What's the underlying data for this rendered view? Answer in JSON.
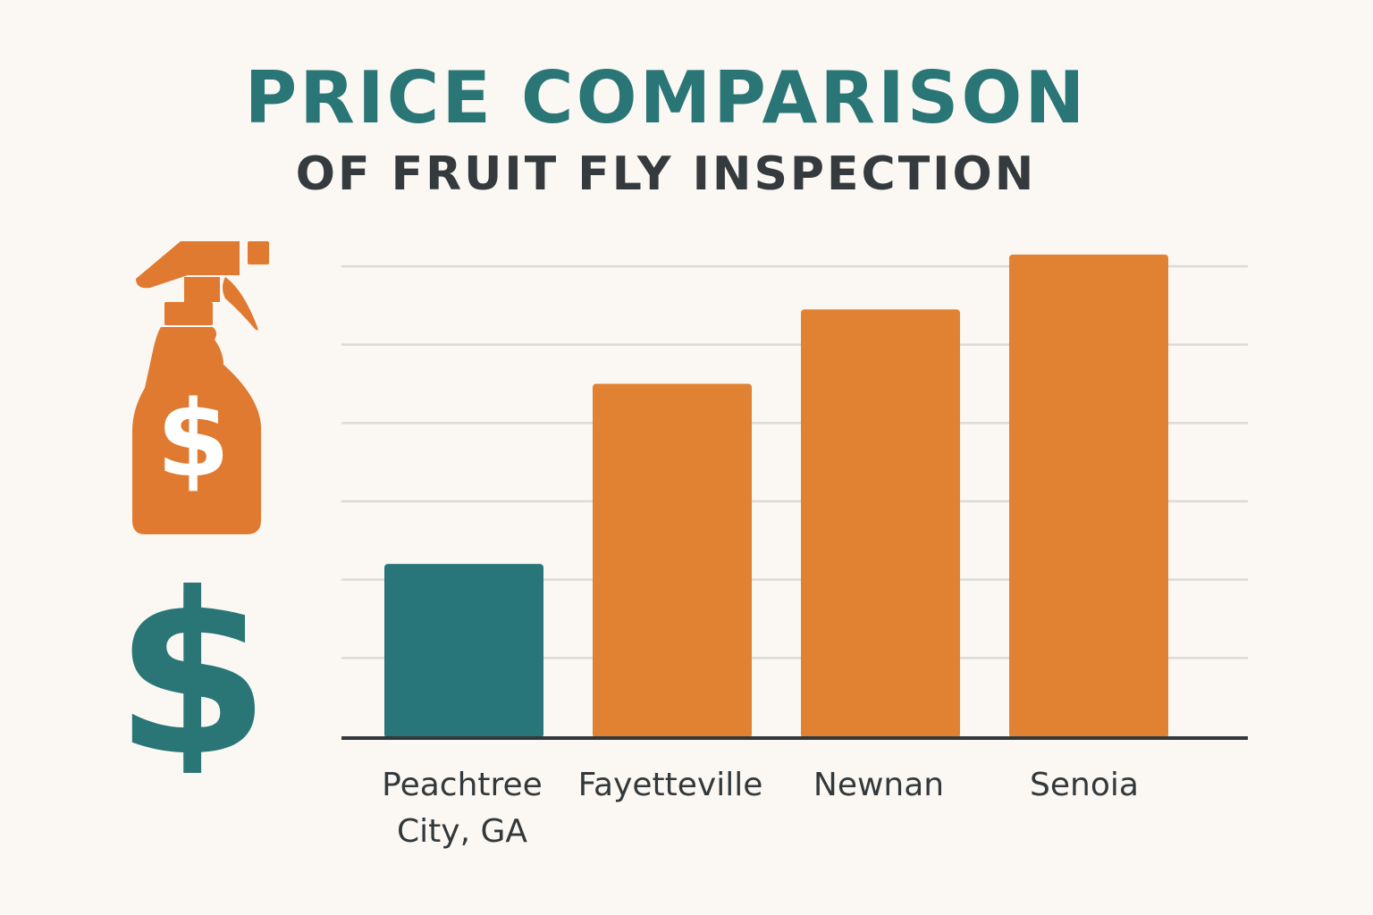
{
  "colors": {
    "title": "#2a7677",
    "subtitle": "#343a3d",
    "highlight_bar": "#28767a",
    "bar": "#e18233",
    "grid": "#dcdad5",
    "axis": "#33383b",
    "tick_text": "#33383b",
    "spray_icon": "#e07a30",
    "dollar_icon": "#2a7677"
  },
  "header": {
    "title": "PRICE COMPARISON",
    "subtitle": "OF FRUIT FLY INSPECTION"
  },
  "icons": {
    "spray": "spray-bottle-dollar-icon",
    "dollar": "dollar-sign-icon"
  },
  "chart_data": {
    "type": "bar",
    "categories": [
      "Peachtree City, GA",
      "Fayetteville",
      "Newnan",
      "Senoia"
    ],
    "category_lines": [
      [
        "Peachtree",
        "City, GA"
      ],
      [
        "Fayetteville"
      ],
      [
        "Newnan"
      ],
      [
        "Senoia"
      ]
    ],
    "values": [
      2.2,
      4.5,
      5.45,
      6.15
    ],
    "highlight_index": 0,
    "ylim": [
      0,
      6
    ],
    "gridlines": 6,
    "grid": true,
    "yaxis_labels_shown": false,
    "title": "PRICE COMPARISON",
    "subtitle": "OF FRUIT FLY INSPECTION",
    "xlabel": "",
    "ylabel": ""
  }
}
